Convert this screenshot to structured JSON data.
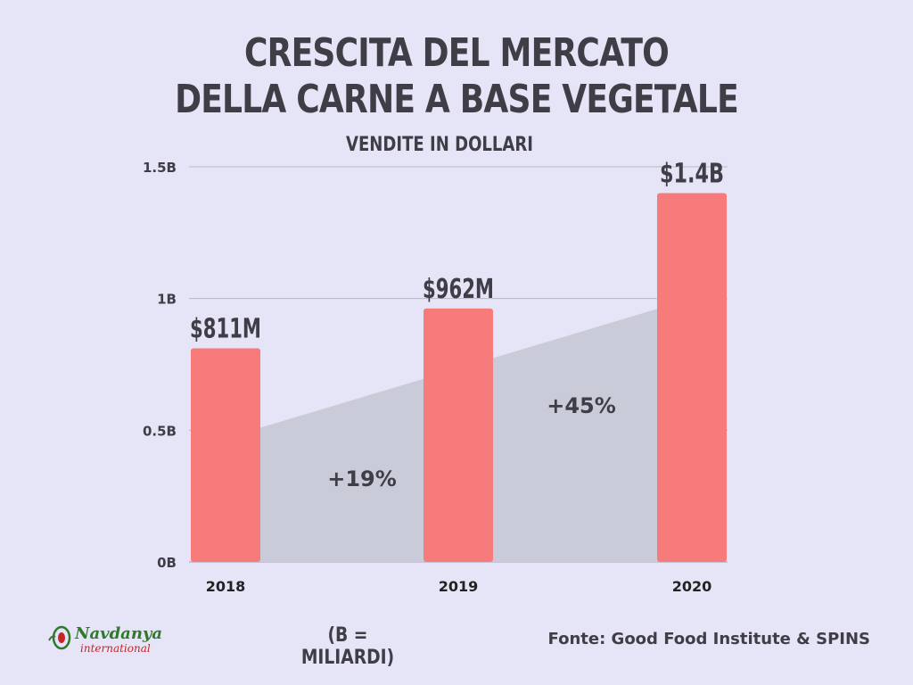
{
  "header": {
    "title_line1": "CRESCITA DEL MERCATO",
    "title_line2": "DELLA CARNE A BASE VEGETALE",
    "subtitle": "VENDITE IN DOLLARI"
  },
  "footer": {
    "note": "(B = MILIARDI)",
    "source": "Fonte: Good Food Institute & SPINS",
    "logo_name": "Navdanya",
    "logo_sub": "international"
  },
  "colors": {
    "bar": "#f77b7a",
    "area": "#c9ccd8",
    "grid": "#b8b7c8",
    "text": "#3f3d46",
    "background": "#e6e4f7"
  },
  "chart_data": {
    "type": "bar",
    "categories": [
      "2018",
      "2019",
      "2020"
    ],
    "values": [
      0.811,
      0.962,
      1.4
    ],
    "value_labels": [
      "$811M",
      "$962M",
      "$1.4B"
    ],
    "ylim": [
      0,
      1.5
    ],
    "yticks": [
      0,
      0.5,
      1,
      1.5
    ],
    "ytick_labels": [
      "0B",
      "0.5B",
      "1B",
      "1.5B"
    ],
    "growth_area": {
      "from_value": 0.47,
      "to_value": 1.0
    },
    "growth_labels": [
      "+19%",
      "+45%"
    ],
    "grid": true
  }
}
